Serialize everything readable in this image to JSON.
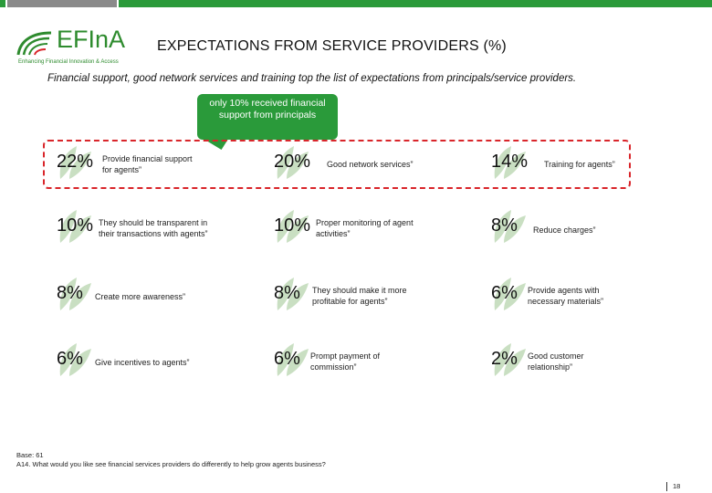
{
  "colors": {
    "green": "#2a9a3a",
    "red": "#d9252a",
    "gray": "#8a8a8a",
    "leaf": "#c9dfc2"
  },
  "logo": {
    "name": "EFInA",
    "tagline": "Enhancing Financial Innovation & Access"
  },
  "header": {
    "title": "EXPECTATIONS FROM SERVICE PROVIDERS (%)",
    "subtitle": "Financial support, good network services and training top the list of expectations from principals/service providers."
  },
  "callout": {
    "text": "only 10% received financial support from principals"
  },
  "items": [
    {
      "pct": "22%",
      "label": "Provide financial support\nfor agents”"
    },
    {
      "pct": "20%",
      "label": "Good network services”"
    },
    {
      "pct": "14%",
      "label": "Training for agents”"
    },
    {
      "pct": "10%",
      "label": "They should be transparent in\ntheir transactions with agents”"
    },
    {
      "pct": "10%",
      "label": "Proper monitoring of agent\nactivities”"
    },
    {
      "pct": "8%",
      "label": "Reduce charges”"
    },
    {
      "pct": "8%",
      "label": "Create more awareness”"
    },
    {
      "pct": "8%",
      "label": "They should make it more\nprofitable for agents”"
    },
    {
      "pct": "6%",
      "label": "Provide agents with\nnecessary materials”"
    },
    {
      "pct": "6%",
      "label": "Give incentives to agents”"
    },
    {
      "pct": "6%",
      "label": "Prompt payment of\ncommission”"
    },
    {
      "pct": "2%",
      "label": "Good customer\nrelationship”"
    }
  ],
  "footer": {
    "base": "Base: 61",
    "question": "A14. What would you like see financial services providers do differently to help grow agents business?"
  },
  "page_number": "18"
}
